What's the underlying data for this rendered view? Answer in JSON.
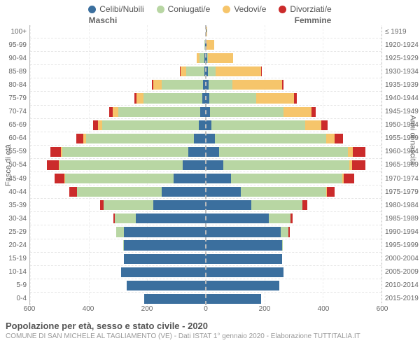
{
  "legend": {
    "items": [
      {
        "label": "Celibi/Nubili",
        "color": "#3b6f9e"
      },
      {
        "label": "Coniugati/e",
        "color": "#b8d6a3"
      },
      {
        "label": "Vedovi/e",
        "color": "#f6c56b"
      },
      {
        "label": "Divorziati/e",
        "color": "#cb2b2b"
      }
    ]
  },
  "gender_labels": {
    "left": "Maschi",
    "right": "Femmine"
  },
  "axis_titles": {
    "left": "Fasce di età",
    "right": "Anni di nascita"
  },
  "age_bands": [
    "100+",
    "95-99",
    "90-94",
    "85-89",
    "80-84",
    "75-79",
    "70-74",
    "65-69",
    "60-64",
    "55-59",
    "50-54",
    "45-49",
    "40-44",
    "35-39",
    "30-34",
    "25-29",
    "20-24",
    "15-19",
    "10-14",
    "5-9",
    "0-4"
  ],
  "birth_years": [
    "≤ 1919",
    "1920-1924",
    "1925-1929",
    "1930-1934",
    "1935-1939",
    "1940-1944",
    "1945-1949",
    "1950-1954",
    "1955-1959",
    "1960-1964",
    "1965-1969",
    "1970-1974",
    "1975-1979",
    "1980-1984",
    "1985-1989",
    "1990-1994",
    "1995-1999",
    "2000-2004",
    "2005-2009",
    "2010-2014",
    "2015-2019"
  ],
  "x_ticks": [
    600,
    400,
    200,
    0,
    200,
    400,
    600
  ],
  "x_max": 600,
  "colors": {
    "celibi": "#3b6f9e",
    "coniugati": "#b8d6a3",
    "vedovi": "#f6c56b",
    "divorziati": "#cb2b2b",
    "grid": "#e6e6e6",
    "midline": "#bbbbbb",
    "background": "#ffffff"
  },
  "pyramid": {
    "male": [
      {
        "c": 1,
        "m": 0,
        "w": 0,
        "d": 0
      },
      {
        "c": 2,
        "m": 2,
        "w": 2,
        "d": 0
      },
      {
        "c": 4,
        "m": 18,
        "w": 10,
        "d": 0
      },
      {
        "c": 6,
        "m": 60,
        "w": 20,
        "d": 3
      },
      {
        "c": 10,
        "m": 140,
        "w": 30,
        "d": 5
      },
      {
        "c": 12,
        "m": 200,
        "w": 25,
        "d": 8
      },
      {
        "c": 18,
        "m": 280,
        "w": 20,
        "d": 12
      },
      {
        "c": 25,
        "m": 330,
        "w": 12,
        "d": 18
      },
      {
        "c": 40,
        "m": 370,
        "w": 8,
        "d": 25
      },
      {
        "c": 60,
        "m": 430,
        "w": 5,
        "d": 35
      },
      {
        "c": 80,
        "m": 420,
        "w": 3,
        "d": 40
      },
      {
        "c": 110,
        "m": 370,
        "w": 2,
        "d": 35
      },
      {
        "c": 150,
        "m": 290,
        "w": 1,
        "d": 25
      },
      {
        "c": 180,
        "m": 170,
        "w": 0,
        "d": 12
      },
      {
        "c": 240,
        "m": 70,
        "w": 0,
        "d": 5
      },
      {
        "c": 280,
        "m": 25,
        "w": 0,
        "d": 2
      },
      {
        "c": 280,
        "m": 3,
        "w": 0,
        "d": 0
      },
      {
        "c": 280,
        "m": 0,
        "w": 0,
        "d": 0
      },
      {
        "c": 290,
        "m": 0,
        "w": 0,
        "d": 0
      },
      {
        "c": 270,
        "m": 0,
        "w": 0,
        "d": 0
      },
      {
        "c": 210,
        "m": 0,
        "w": 0,
        "d": 0
      }
    ],
    "female": [
      {
        "c": 2,
        "m": 0,
        "w": 3,
        "d": 0
      },
      {
        "c": 3,
        "m": 0,
        "w": 25,
        "d": 0
      },
      {
        "c": 5,
        "m": 3,
        "w": 85,
        "d": 0
      },
      {
        "c": 8,
        "m": 25,
        "w": 155,
        "d": 2
      },
      {
        "c": 10,
        "m": 80,
        "w": 170,
        "d": 5
      },
      {
        "c": 12,
        "m": 160,
        "w": 130,
        "d": 8
      },
      {
        "c": 15,
        "m": 250,
        "w": 95,
        "d": 15
      },
      {
        "c": 20,
        "m": 320,
        "w": 55,
        "d": 20
      },
      {
        "c": 30,
        "m": 380,
        "w": 30,
        "d": 28
      },
      {
        "c": 45,
        "m": 440,
        "w": 18,
        "d": 42
      },
      {
        "c": 60,
        "m": 430,
        "w": 10,
        "d": 45
      },
      {
        "c": 85,
        "m": 380,
        "w": 5,
        "d": 38
      },
      {
        "c": 120,
        "m": 290,
        "w": 3,
        "d": 28
      },
      {
        "c": 155,
        "m": 175,
        "w": 1,
        "d": 15
      },
      {
        "c": 215,
        "m": 75,
        "w": 0,
        "d": 6
      },
      {
        "c": 255,
        "m": 28,
        "w": 0,
        "d": 3
      },
      {
        "c": 260,
        "m": 4,
        "w": 0,
        "d": 0
      },
      {
        "c": 260,
        "m": 0,
        "w": 0,
        "d": 0
      },
      {
        "c": 265,
        "m": 0,
        "w": 0,
        "d": 0
      },
      {
        "c": 250,
        "m": 0,
        "w": 0,
        "d": 0
      },
      {
        "c": 190,
        "m": 0,
        "w": 0,
        "d": 0
      }
    ]
  },
  "footer": {
    "title": "Popolazione per età, sesso e stato civile - 2020",
    "source": "COMUNE DI SAN MICHELE AL TAGLIAMENTO (VE) - Dati ISTAT 1° gennaio 2020 - Elaborazione TUTTITALIA.IT"
  }
}
